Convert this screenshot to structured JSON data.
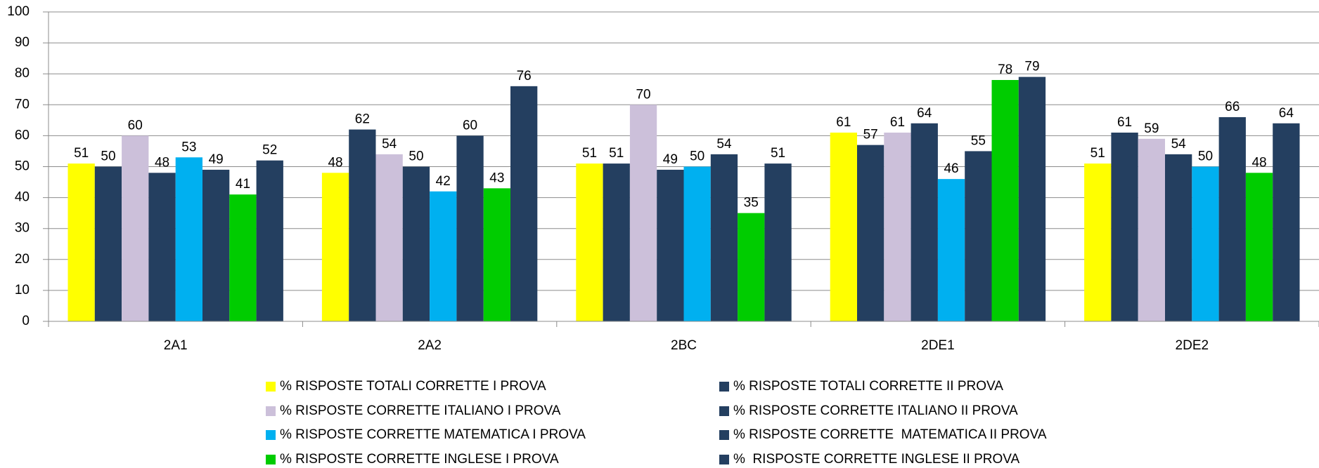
{
  "chart_data": {
    "type": "bar",
    "categories": [
      "2A1",
      "2A2",
      "2BC",
      "2DE1",
      "2DE2"
    ],
    "series": [
      {
        "name": "% RISPOSTE TOTALI CORRETTE I PROVA",
        "color": "#ffff00",
        "values": [
          51,
          48,
          51,
          61,
          51
        ]
      },
      {
        "name": "% RISPOSTE TOTALI CORRETTE II PROVA",
        "color": "#243f60",
        "values": [
          50,
          62,
          51,
          57,
          61
        ]
      },
      {
        "name": "% RISPOSTE CORRETTE ITALIANO I PROVA",
        "color": "#ccc0da",
        "values": [
          60,
          54,
          70,
          61,
          59
        ]
      },
      {
        "name": "% RISPOSTE CORRETTE ITALIANO II PROVA",
        "color": "#243f60",
        "values": [
          48,
          50,
          49,
          64,
          54
        ]
      },
      {
        "name": "% RISPOSTE CORRETTE MATEMATICA I PROVA",
        "color": "#00b0f0",
        "values": [
          53,
          42,
          50,
          46,
          50
        ]
      },
      {
        "name": "% RISPOSTE CORRETTE  MATEMATICA II PROVA",
        "color": "#243f60",
        "values": [
          49,
          60,
          54,
          55,
          66
        ]
      },
      {
        "name": "% RISPOSTE CORRETTE INGLESE I PROVA",
        "color": "#00cc00",
        "values": [
          41,
          43,
          35,
          78,
          48
        ]
      },
      {
        "name": "%  RISPOSTE CORRETTE INGLESE II PROVA",
        "color": "#243f60",
        "values": [
          52,
          76,
          51,
          79,
          64
        ]
      }
    ],
    "ylim": [
      0,
      100
    ],
    "yticks": [
      0,
      10,
      20,
      30,
      40,
      50,
      60,
      70,
      80,
      90,
      100
    ],
    "grid": true
  }
}
